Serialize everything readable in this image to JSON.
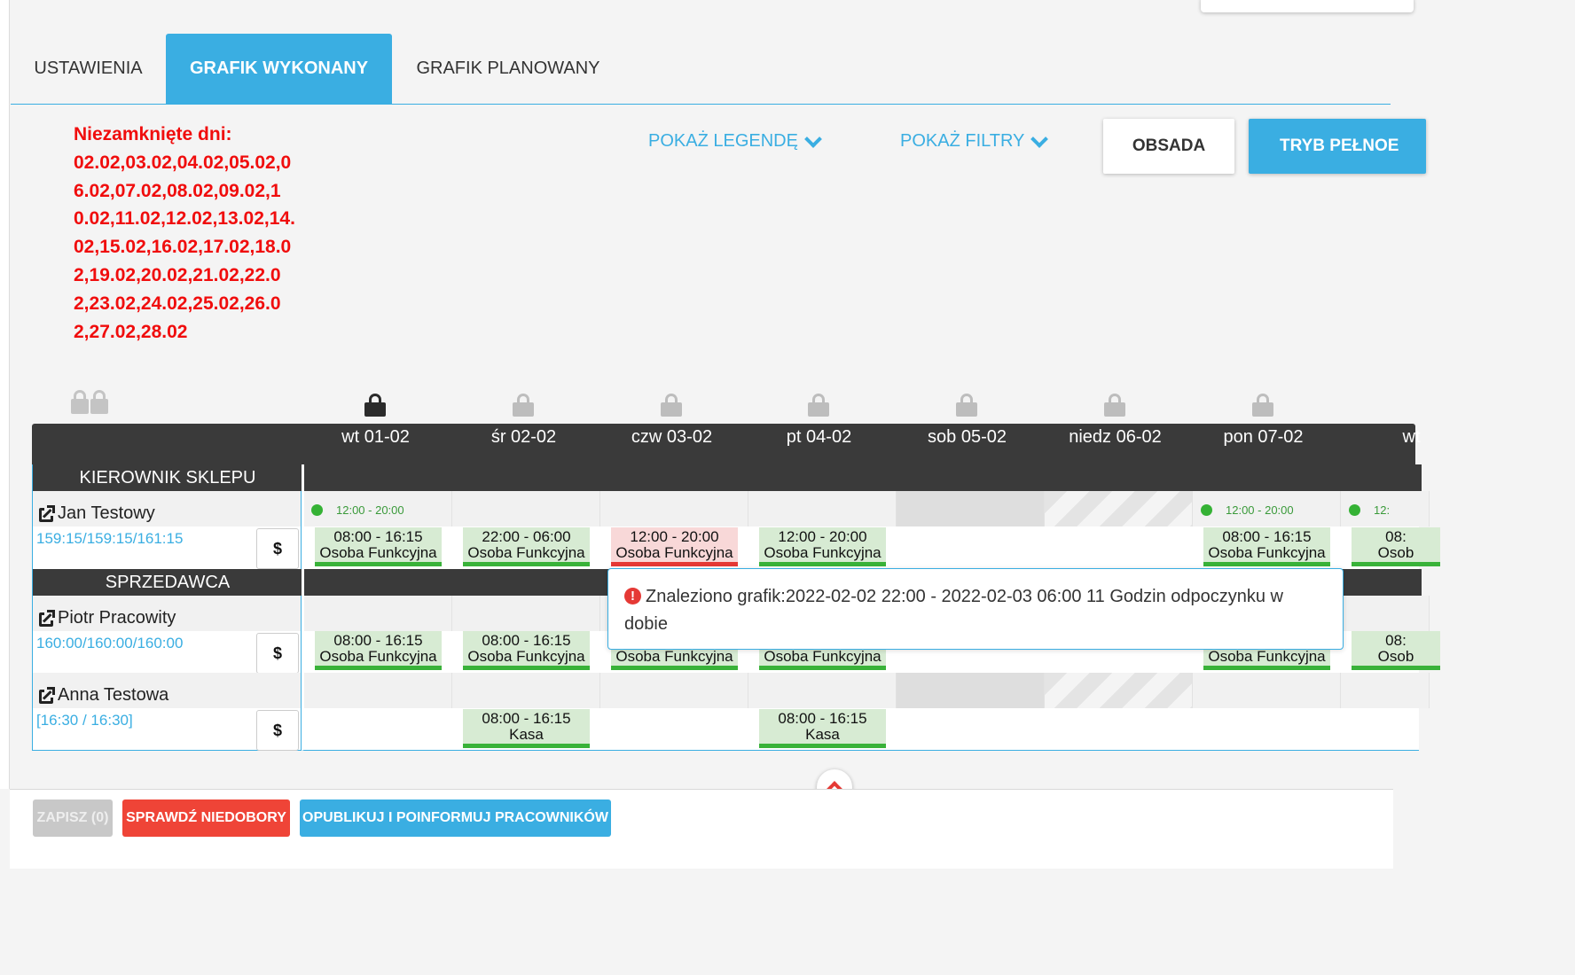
{
  "tabs": [
    {
      "label": "USTAWIENIA",
      "active": false
    },
    {
      "label": "GRAFIK WYKONANY",
      "active": true
    },
    {
      "label": "GRAFIK PLANOWANY",
      "active": false
    }
  ],
  "unclosed": {
    "title": "Niezamknięte dni:",
    "dates": "02.02,03.02,04.02,05.02,06.02,07.02,08.02,09.02,10.02,11.02,12.02,13.02,14.02,15.02,16.02,17.02,18.02,19.02,20.02,21.02,22.02,23.02,24.02,25.02,26.02,27.02,28.02"
  },
  "toolbar": {
    "show_legend": "POKAŻ LEGENDĘ",
    "show_filters": "POKAŻ FILTRY",
    "obsada": "OBSADA",
    "fullscreen": "TRYB PEŁNOE"
  },
  "days": [
    "wt 01-02",
    "śr 02-02",
    "czw 03-02",
    "pt 04-02",
    "sob 05-02",
    "niedz 06-02",
    "pon 07-02",
    "wt"
  ],
  "sections": {
    "manager": "KIEROWNIK SKLEPU",
    "seller": "SPRZEDAWCA"
  },
  "employees": [
    {
      "name": "Jan Testowy",
      "hours": "159:15/159:15/161:15",
      "cost": "$"
    },
    {
      "name": "Piotr Pracowity",
      "hours": "160:00/160:00/160:00",
      "cost": "$"
    },
    {
      "name": "Anna Testowa",
      "hours": "[16:30 / 16:30]",
      "cost": "$"
    }
  ],
  "planned": {
    "jan_mon": "12:00 - 20:00",
    "jan_pon": "12:00 - 20:00",
    "jan_wt2": "12:"
  },
  "shifts": {
    "jan": [
      {
        "time": "08:00 - 16:15",
        "role": "Osoba Funkcyjna"
      },
      {
        "time": "22:00 - 06:00",
        "role": "Osoba Funkcyjna"
      },
      {
        "time": "12:00 - 20:00",
        "role": "Osoba Funkcyjna"
      },
      {
        "time": "12:00 - 20:00",
        "role": "Osoba Funkcyjna"
      },
      {
        "time": "08:00 - 16:15",
        "role": "Osoba Funkcyjna"
      },
      {
        "time": "08:",
        "role": "Osob"
      }
    ],
    "piotr": [
      {
        "time": "08:00 - 16:15",
        "role": "Osoba Funkcyjna"
      },
      {
        "time": "08:00 - 16:15",
        "role": "Osoba Funkcyjna"
      },
      {
        "time": "",
        "role": "Osoba Funkcyjna"
      },
      {
        "time": "",
        "role": "Osoba Funkcyjna"
      },
      {
        "time": "",
        "role": "Osoba Funkcyjna"
      },
      {
        "time": "08:",
        "role": "Osob"
      }
    ],
    "anna": [
      {
        "time": "08:00 - 16:15",
        "role": "Kasa"
      },
      {
        "time": "08:00 - 16:15",
        "role": "Kasa"
      }
    ]
  },
  "tooltip": "Znaleziono grafik:2022-02-02 22:00 - 2022-02-03 06:00 11 Godzin odpoczynku w dobie",
  "bottom": {
    "save": "ZAPISZ (0)",
    "check": "SPRAWDŹ NIEDOBORY",
    "publish": "OPUBLIKUJ I POINFORMUJ PRACOWNIKÓW"
  },
  "colors": {
    "accent": "#3aaee2",
    "error": "#e53935",
    "shift_ok": "#d7ebd3",
    "shift_err": "#f8d8d8"
  }
}
